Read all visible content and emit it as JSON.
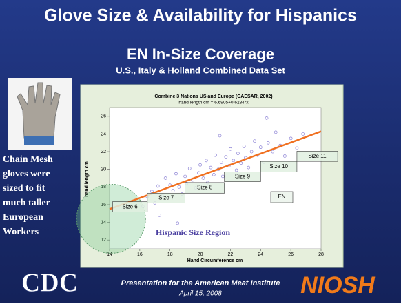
{
  "header": {
    "title": "Glove Size & Availability for Hispanics",
    "subtitle": "EN In-Size Coverage",
    "subsubtitle": "U.S., Italy & Holland Combined Data Set"
  },
  "caption": [
    "Chain Mesh",
    "gloves were",
    "sized to fit",
    "much taller",
    "European",
    "Workers"
  ],
  "footer": {
    "line1": "Presentation for the American Meat Institute",
    "line2": "April 15, 2008",
    "left_logo": "CDC",
    "right_logo": "NIOSH"
  },
  "chart_data": {
    "type": "scatter",
    "title": "Combine 3 Nations US and Europe (CAESAR, 2002)",
    "subtitle": "hand length cm = 6.6905+0.6284*x",
    "xlabel": "Hand Circumference cm",
    "ylabel": "hand length cm",
    "xlim": [
      14,
      28
    ],
    "ylim": [
      11,
      27
    ],
    "xticks": [
      14,
      16,
      18,
      20,
      22,
      24,
      26,
      28
    ],
    "yticks": [
      12,
      14,
      16,
      18,
      20,
      22,
      24,
      26
    ],
    "color": "#8a80d4",
    "x": [
      16.2,
      16.5,
      16.8,
      17,
      17.2,
      17.5,
      17.7,
      17.9,
      18,
      18.2,
      18.4,
      18.6,
      18.8,
      19,
      19.1,
      19.3,
      19.5,
      19.7,
      19.9,
      20,
      20.2,
      20.4,
      20.5,
      20.7,
      20.9,
      21,
      21.2,
      21.4,
      21.5,
      21.7,
      21.9,
      22,
      22.2,
      22.4,
      22.5,
      22.7,
      22.9,
      23,
      23.2,
      23.4,
      23.6,
      23.8,
      24,
      24.2,
      24.5,
      24.8,
      25,
      25.3,
      25.6,
      26,
      26.4,
      26.8,
      18.5,
      17.3,
      24.4,
      21.3
    ],
    "values": [
      15.8,
      16.9,
      17.5,
      16.2,
      18.1,
      17,
      19,
      16.8,
      18.2,
      17.6,
      19.5,
      18,
      17.2,
      19.2,
      18.4,
      20.1,
      18.8,
      17.9,
      19.6,
      20.5,
      19,
      21,
      18.5,
      20.2,
      19.4,
      21.6,
      20,
      20.8,
      19.2,
      21.4,
      20.4,
      22.3,
      21,
      19.9,
      21.8,
      20.7,
      22.6,
      21.3,
      20.2,
      22,
      23.2,
      21.6,
      22.5,
      20.8,
      23,
      22,
      24.2,
      22.7,
      21.5,
      23.5,
      22.4,
      24,
      13.9,
      14.8,
      25.8,
      23.8
    ],
    "fit_line": {
      "color": "#f07020",
      "x": [
        14,
        28
      ],
      "values": [
        15.49,
        24.29
      ]
    },
    "size_boxes": [
      {
        "label": "Size 6",
        "x": [
          14.2,
          16.5
        ],
        "y": [
          15.17,
          16.33
        ]
      },
      {
        "label": "Size 7",
        "x": [
          16.5,
          19
        ],
        "y": [
          16.2,
          17.3
        ]
      },
      {
        "label": "Size 8",
        "x": [
          19,
          21.6
        ],
        "y": [
          17.3,
          18.5
        ]
      },
      {
        "label": "Size 9",
        "x": [
          21.6,
          24
        ],
        "y": [
          18.6,
          19.7
        ]
      },
      {
        "label": "Size 10",
        "x": [
          24,
          26.4
        ],
        "y": [
          19.7,
          20.9
        ]
      },
      {
        "label": "Size 11",
        "x": [
          26.4,
          29.1
        ],
        "y": [
          20.9,
          22.05
        ]
      }
    ],
    "annotations": [
      "EN",
      "Hispanic Size Region"
    ]
  }
}
